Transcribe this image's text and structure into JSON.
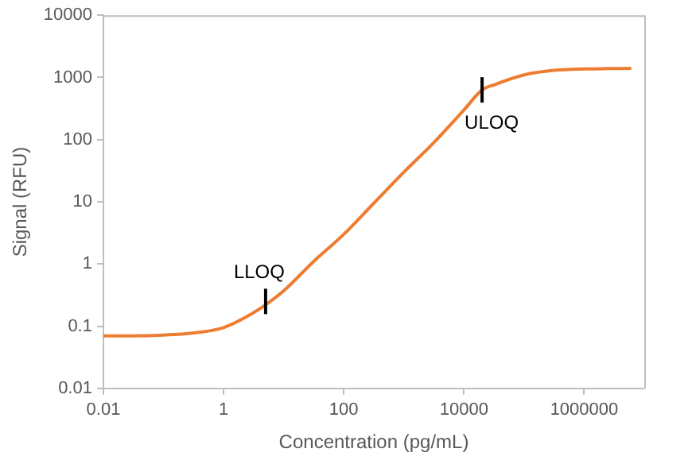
{
  "chart_data": {
    "type": "line",
    "xlabel": "Concentration (pg/mL)",
    "ylabel": "Signal (RFU)",
    "log": "xy",
    "grid": false,
    "marker": "none",
    "line_style": "solid",
    "series": [
      {
        "color": "#ed7d31",
        "x": [
          0.01,
          0.0316,
          0.1,
          0.316,
          1,
          3.16,
          5,
          10,
          31.6,
          100,
          316,
          1000,
          3160,
          10000,
          20000,
          31600,
          100000,
          316000,
          1000000,
          3160000,
          5800000
        ],
        "values": [
          0.07,
          0.07,
          0.072,
          0.078,
          0.095,
          0.165,
          0.22,
          0.37,
          1.1,
          3,
          9.5,
          30,
          90,
          300,
          630,
          760,
          1100,
          1300,
          1370,
          1390,
          1400
        ]
      }
    ],
    "xlim": [
      0.01,
      10000000
    ],
    "xticks": [
      0.01,
      1,
      100,
      10000,
      1000000
    ],
    "ylim": [
      0.01,
      10000
    ],
    "yticks": [
      0.01,
      0.1,
      1,
      10,
      100,
      1000,
      10000
    ],
    "annotations": [
      {
        "text": "LLOQ",
        "x": 5,
        "y": 0.25
      },
      {
        "text": "ULOQ",
        "x": 20000,
        "y": 630
      }
    ]
  }
}
